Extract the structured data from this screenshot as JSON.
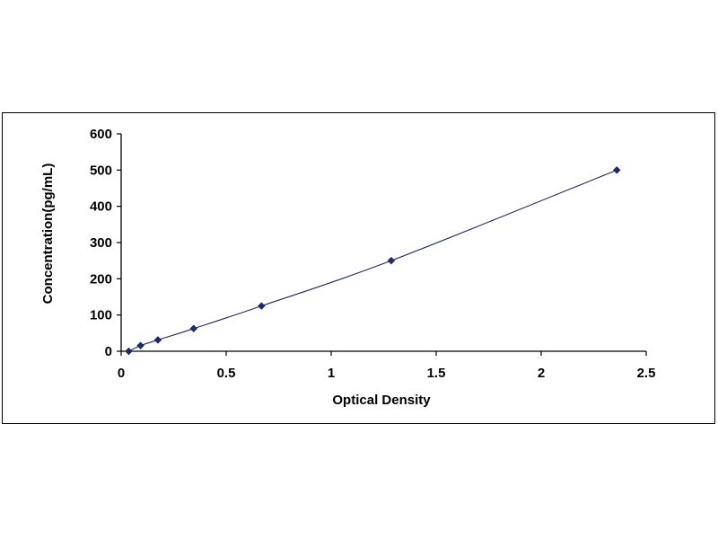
{
  "chart_data": {
    "type": "scatter",
    "title": "",
    "xlabel": "Optical Density",
    "ylabel": "Concentration(pg/mL)",
    "xlim": [
      0,
      2.5
    ],
    "ylim": [
      0,
      600
    ],
    "x_ticks": [
      "0",
      "0.5",
      "1",
      "1.5",
      "2",
      "2.5"
    ],
    "y_ticks": [
      "0",
      "100",
      "200",
      "300",
      "400",
      "500",
      "600"
    ],
    "grid": false,
    "legend": "none",
    "series": [
      {
        "x": [
          0.036,
          0.092,
          0.175,
          0.345,
          0.668,
          1.286,
          2.36
        ],
        "y": [
          0,
          15.6,
          31.2,
          62.5,
          125,
          250,
          500
        ],
        "marker": "diamond",
        "color": "#1F2A6B",
        "fit_line": true
      }
    ]
  }
}
